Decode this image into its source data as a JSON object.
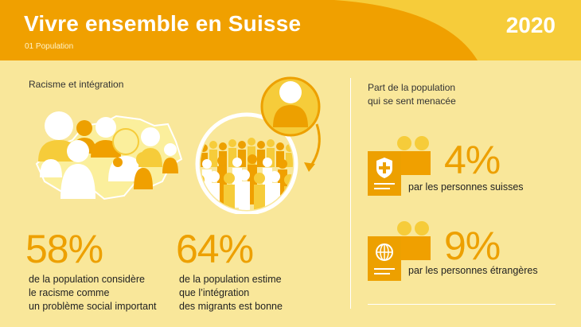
{
  "header": {
    "title": "Vivre ensemble en Suisse",
    "subtitle": "01 Population",
    "year": "2020"
  },
  "left": {
    "section_label": "Racisme et intégration",
    "stat1": {
      "value": "58%",
      "lines": [
        "de la population considère",
        "le racisme comme",
        "un problème social important"
      ]
    },
    "stat2": {
      "value": "64%",
      "lines": [
        "de la population estime",
        "que l’intégration",
        "des migrants est bonne"
      ]
    }
  },
  "right": {
    "section_label_lines": [
      "Part de la population",
      "qui se sent menacée"
    ],
    "swiss": {
      "value": "4%",
      "label": "par les personnes suisses"
    },
    "foreign": {
      "value": "9%",
      "label": "par les personnes étrangères"
    }
  },
  "colors": {
    "background": "#f9e79a",
    "header_orange": "#f0a000",
    "header_yellow": "#f6cc3a",
    "accent_orange": "#eda000",
    "pale_yellow": "#fbef9c"
  },
  "icons": [
    "switzerland-map-icon",
    "people-crowd-icon",
    "integration-circle-icon",
    "swiss-passport-icon",
    "foreign-passport-icon",
    "people-pair-icon"
  ]
}
